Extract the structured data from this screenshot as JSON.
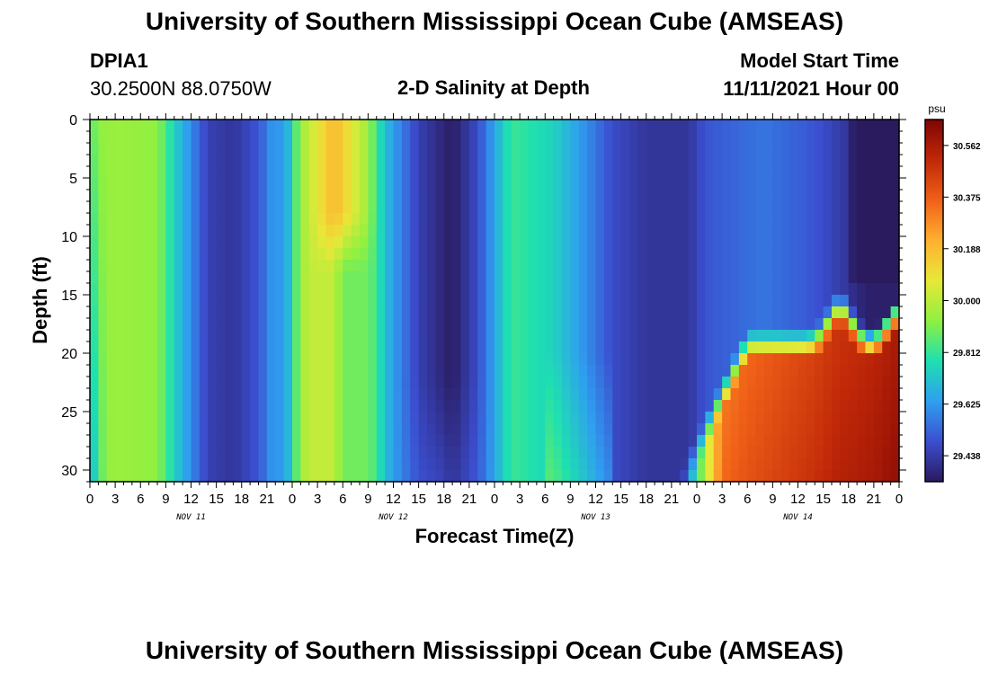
{
  "page": {
    "title": "University of Southern Mississippi Ocean Cube (AMSEAS)",
    "title_repeat": "University of Southern Mississippi Ocean Cube (AMSEAS)",
    "station_id": "DPIA1",
    "station_coords": "30.2500N  88.0750W",
    "plot_title": "2-D Salinity at Depth",
    "model_start_label": "Model Start Time",
    "model_start_value": "11/11/2021 Hour 00"
  },
  "chart_data": {
    "type": "heatmap",
    "title": "2-D Salinity at Depth",
    "xlabel": "Forecast Time(Z)",
    "ylabel": "Depth (ft)",
    "x_range": [
      0,
      96
    ],
    "y_range": [
      0,
      31
    ],
    "y_ticks": [
      0,
      5,
      10,
      15,
      20,
      25,
      30
    ],
    "x_tick_labels": [
      "0",
      "3",
      "6",
      "9",
      "12",
      "15",
      "18",
      "21",
      "0",
      "3",
      "6",
      "9",
      "12",
      "15",
      "18",
      "21",
      "0",
      "3",
      "6",
      "9",
      "12",
      "15",
      "18",
      "21",
      "0",
      "3",
      "6",
      "9",
      "12",
      "15",
      "18",
      "21",
      "0"
    ],
    "day_labels": [
      {
        "label": "NOV 11",
        "hour": 12
      },
      {
        "label": "NOV 12",
        "hour": 36
      },
      {
        "label": "NOV 13",
        "hour": 60
      },
      {
        "label": "NOV 14",
        "hour": 84
      }
    ],
    "colorbar": {
      "unit": "psu",
      "min": 29.344,
      "max": 30.656,
      "ticks": [
        29.438,
        29.625,
        29.812,
        30.0,
        30.188,
        30.375,
        30.562
      ],
      "tick_labels": [
        "29.438",
        "29.625",
        "29.812",
        "30.000",
        "30.188",
        "30.375",
        "30.562"
      ],
      "colors": [
        "#2a1a5e",
        "#3b4fd0",
        "#2f9ff0",
        "#1ee0b0",
        "#8ef040",
        "#e8e838",
        "#ffb030",
        "#f06018",
        "#c02808",
        "#800404"
      ]
    },
    "surface_salinity_profile": [
      {
        "hour": 0,
        "value": 29.85
      },
      {
        "hour": 1,
        "value": 29.93
      },
      {
        "hour": 3,
        "value": 29.95
      },
      {
        "hour": 8,
        "value": 29.93
      },
      {
        "hour": 10,
        "value": 29.75
      },
      {
        "hour": 12,
        "value": 29.6
      },
      {
        "hour": 14,
        "value": 29.45
      },
      {
        "hour": 17,
        "value": 29.42
      },
      {
        "hour": 20,
        "value": 29.5
      },
      {
        "hour": 22,
        "value": 29.65
      },
      {
        "hour": 23,
        "value": 29.6
      },
      {
        "hour": 25,
        "value": 29.95
      },
      {
        "hour": 29,
        "value": 30.2
      },
      {
        "hour": 33,
        "value": 29.95
      },
      {
        "hour": 35,
        "value": 29.7
      },
      {
        "hour": 39,
        "value": 29.45
      },
      {
        "hour": 43,
        "value": 29.35
      },
      {
        "hour": 46,
        "value": 29.48
      },
      {
        "hour": 48,
        "value": 29.65
      },
      {
        "hour": 50,
        "value": 29.82
      },
      {
        "hour": 55,
        "value": 29.75
      },
      {
        "hour": 59,
        "value": 29.6
      },
      {
        "hour": 62,
        "value": 29.48
      },
      {
        "hour": 66,
        "value": 29.42
      },
      {
        "hour": 71,
        "value": 29.42
      },
      {
        "hour": 73,
        "value": 29.5
      },
      {
        "hour": 80,
        "value": 29.56
      },
      {
        "hour": 86,
        "value": 29.5
      },
      {
        "hour": 89,
        "value": 29.44
      },
      {
        "hour": 92,
        "value": 29.36
      },
      {
        "hour": 96,
        "value": 29.36
      }
    ]
  }
}
